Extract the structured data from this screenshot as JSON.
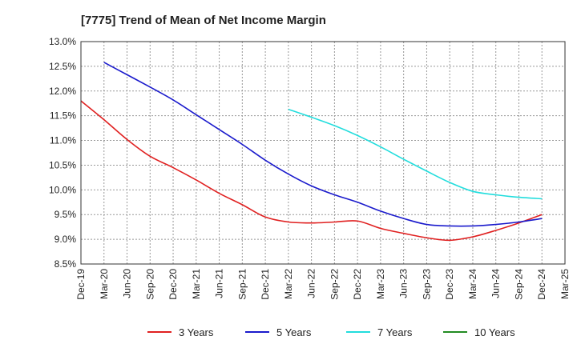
{
  "chart_data": {
    "type": "line",
    "title": "[7775]  Trend of Mean of Net Income Margin",
    "xlabel": "",
    "ylabel": "",
    "ylim": [
      8.5,
      13.0
    ],
    "y_ticks": [
      "8.5%",
      "9.0%",
      "9.5%",
      "10.0%",
      "10.5%",
      "11.0%",
      "11.5%",
      "12.0%",
      "12.5%",
      "13.0%"
    ],
    "x_ticks": [
      "Dec-19",
      "Mar-20",
      "Jun-20",
      "Sep-20",
      "Dec-20",
      "Mar-21",
      "Jun-21",
      "Sep-21",
      "Dec-21",
      "Mar-22",
      "Jun-22",
      "Sep-22",
      "Dec-22",
      "Mar-23",
      "Jun-23",
      "Sep-23",
      "Dec-23",
      "Mar-24",
      "Jun-24",
      "Sep-24",
      "Dec-24",
      "Mar-25"
    ],
    "grid": true,
    "legend_position": "bottom",
    "series": [
      {
        "name": "3 Years",
        "color": "#e02020",
        "x": [
          "Dec-19",
          "Mar-20",
          "Jun-20",
          "Sep-20",
          "Dec-20",
          "Mar-21",
          "Jun-21",
          "Sep-21",
          "Dec-21",
          "Mar-22",
          "Jun-22",
          "Sep-22",
          "Dec-22",
          "Mar-23",
          "Jun-23",
          "Sep-23",
          "Dec-23",
          "Mar-24",
          "Jun-24",
          "Sep-24",
          "Dec-24"
        ],
        "values": [
          11.8,
          11.42,
          11.02,
          10.68,
          10.45,
          10.2,
          9.93,
          9.7,
          9.45,
          9.35,
          9.33,
          9.35,
          9.37,
          9.22,
          9.12,
          9.03,
          8.98,
          9.05,
          9.18,
          9.33,
          9.5
        ]
      },
      {
        "name": "5 Years",
        "color": "#1a1acc",
        "x": [
          "Mar-20",
          "Jun-20",
          "Sep-20",
          "Dec-20",
          "Mar-21",
          "Jun-21",
          "Sep-21",
          "Dec-21",
          "Mar-22",
          "Jun-22",
          "Sep-22",
          "Dec-22",
          "Mar-23",
          "Jun-23",
          "Sep-23",
          "Dec-23",
          "Mar-24",
          "Jun-24",
          "Sep-24",
          "Dec-24"
        ],
        "values": [
          12.58,
          12.33,
          12.08,
          11.82,
          11.52,
          11.22,
          10.92,
          10.6,
          10.32,
          10.08,
          9.9,
          9.75,
          9.57,
          9.42,
          9.3,
          9.27,
          9.27,
          9.3,
          9.35,
          9.42
        ]
      },
      {
        "name": "7 Years",
        "color": "#22dddd",
        "x": [
          "Mar-22",
          "Jun-22",
          "Sep-22",
          "Dec-22",
          "Mar-23",
          "Jun-23",
          "Sep-23",
          "Dec-23",
          "Mar-24",
          "Jun-24",
          "Sep-24",
          "Dec-24"
        ],
        "values": [
          11.63,
          11.47,
          11.3,
          11.1,
          10.87,
          10.62,
          10.38,
          10.15,
          9.97,
          9.9,
          9.85,
          9.82
        ]
      },
      {
        "name": "10 Years",
        "color": "#228b22",
        "x": [],
        "values": []
      }
    ]
  }
}
